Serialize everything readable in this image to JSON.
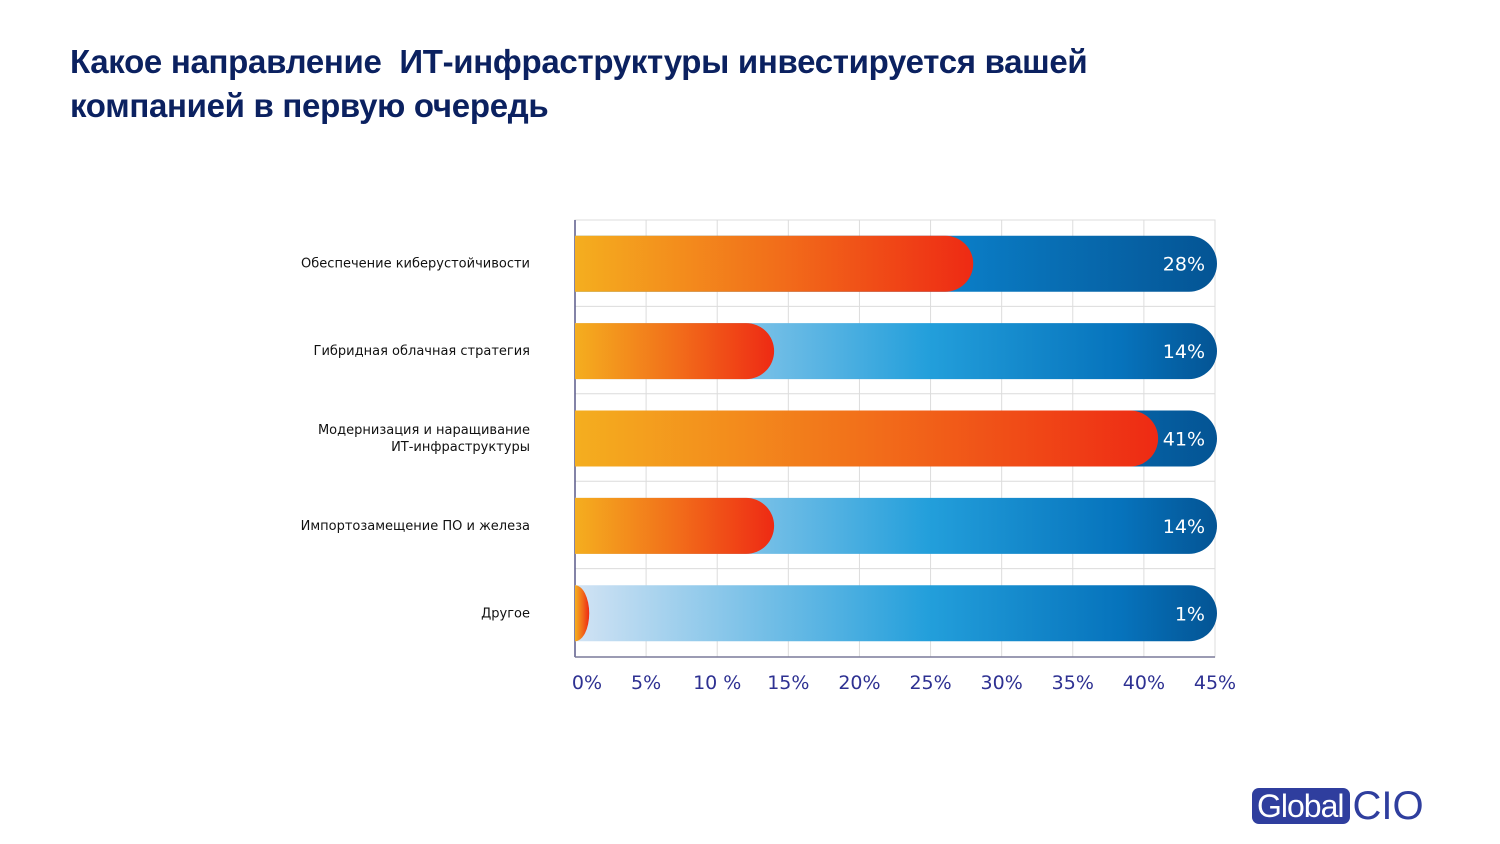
{
  "title": {
    "line1": "Какое направление  ИТ-инфраструктуры инвестируется вашей",
    "line2": "компанией в первую очередь"
  },
  "colors": {
    "title": "#0b2160",
    "orange_start": "#f4ae1f",
    "orange_end": "#ee2a14",
    "blue_light": "#c8dcf0",
    "blue_mid": "#239fdb",
    "blue_dark": "#045a9c",
    "tick": "#2e3192",
    "logo": "#2f3e9e"
  },
  "chart_data": {
    "type": "bar",
    "orientation": "horizontal",
    "title": "Какое направление  ИТ-инфраструктуры инвестируется вашей компанией в первую очередь",
    "categories": [
      [
        "Обеспечение киберустойчивости"
      ],
      [
        "Гибридная облачная стратегия"
      ],
      [
        "Модернизация и наращивание",
        "ИТ-инфраструктуры"
      ],
      [
        "Импортозамещение ПО и железа"
      ],
      [
        "Другое"
      ]
    ],
    "values": [
      28,
      14,
      41,
      14,
      1
    ],
    "value_labels": [
      "28%",
      "14%",
      "41%",
      "14%",
      "1%"
    ],
    "xlim": [
      0,
      45
    ],
    "xticks": [
      0,
      5,
      10,
      15,
      20,
      25,
      30,
      35,
      40,
      45
    ],
    "xtick_labels": [
      "0%",
      "5%",
      "10 %",
      "15%",
      "20%",
      "25%",
      "30%",
      "35%",
      "40%",
      "45%"
    ],
    "xlabel": "",
    "ylabel": "",
    "grid": true,
    "legend": null
  },
  "logo": {
    "part1": "Global",
    "part2": "CIO"
  }
}
